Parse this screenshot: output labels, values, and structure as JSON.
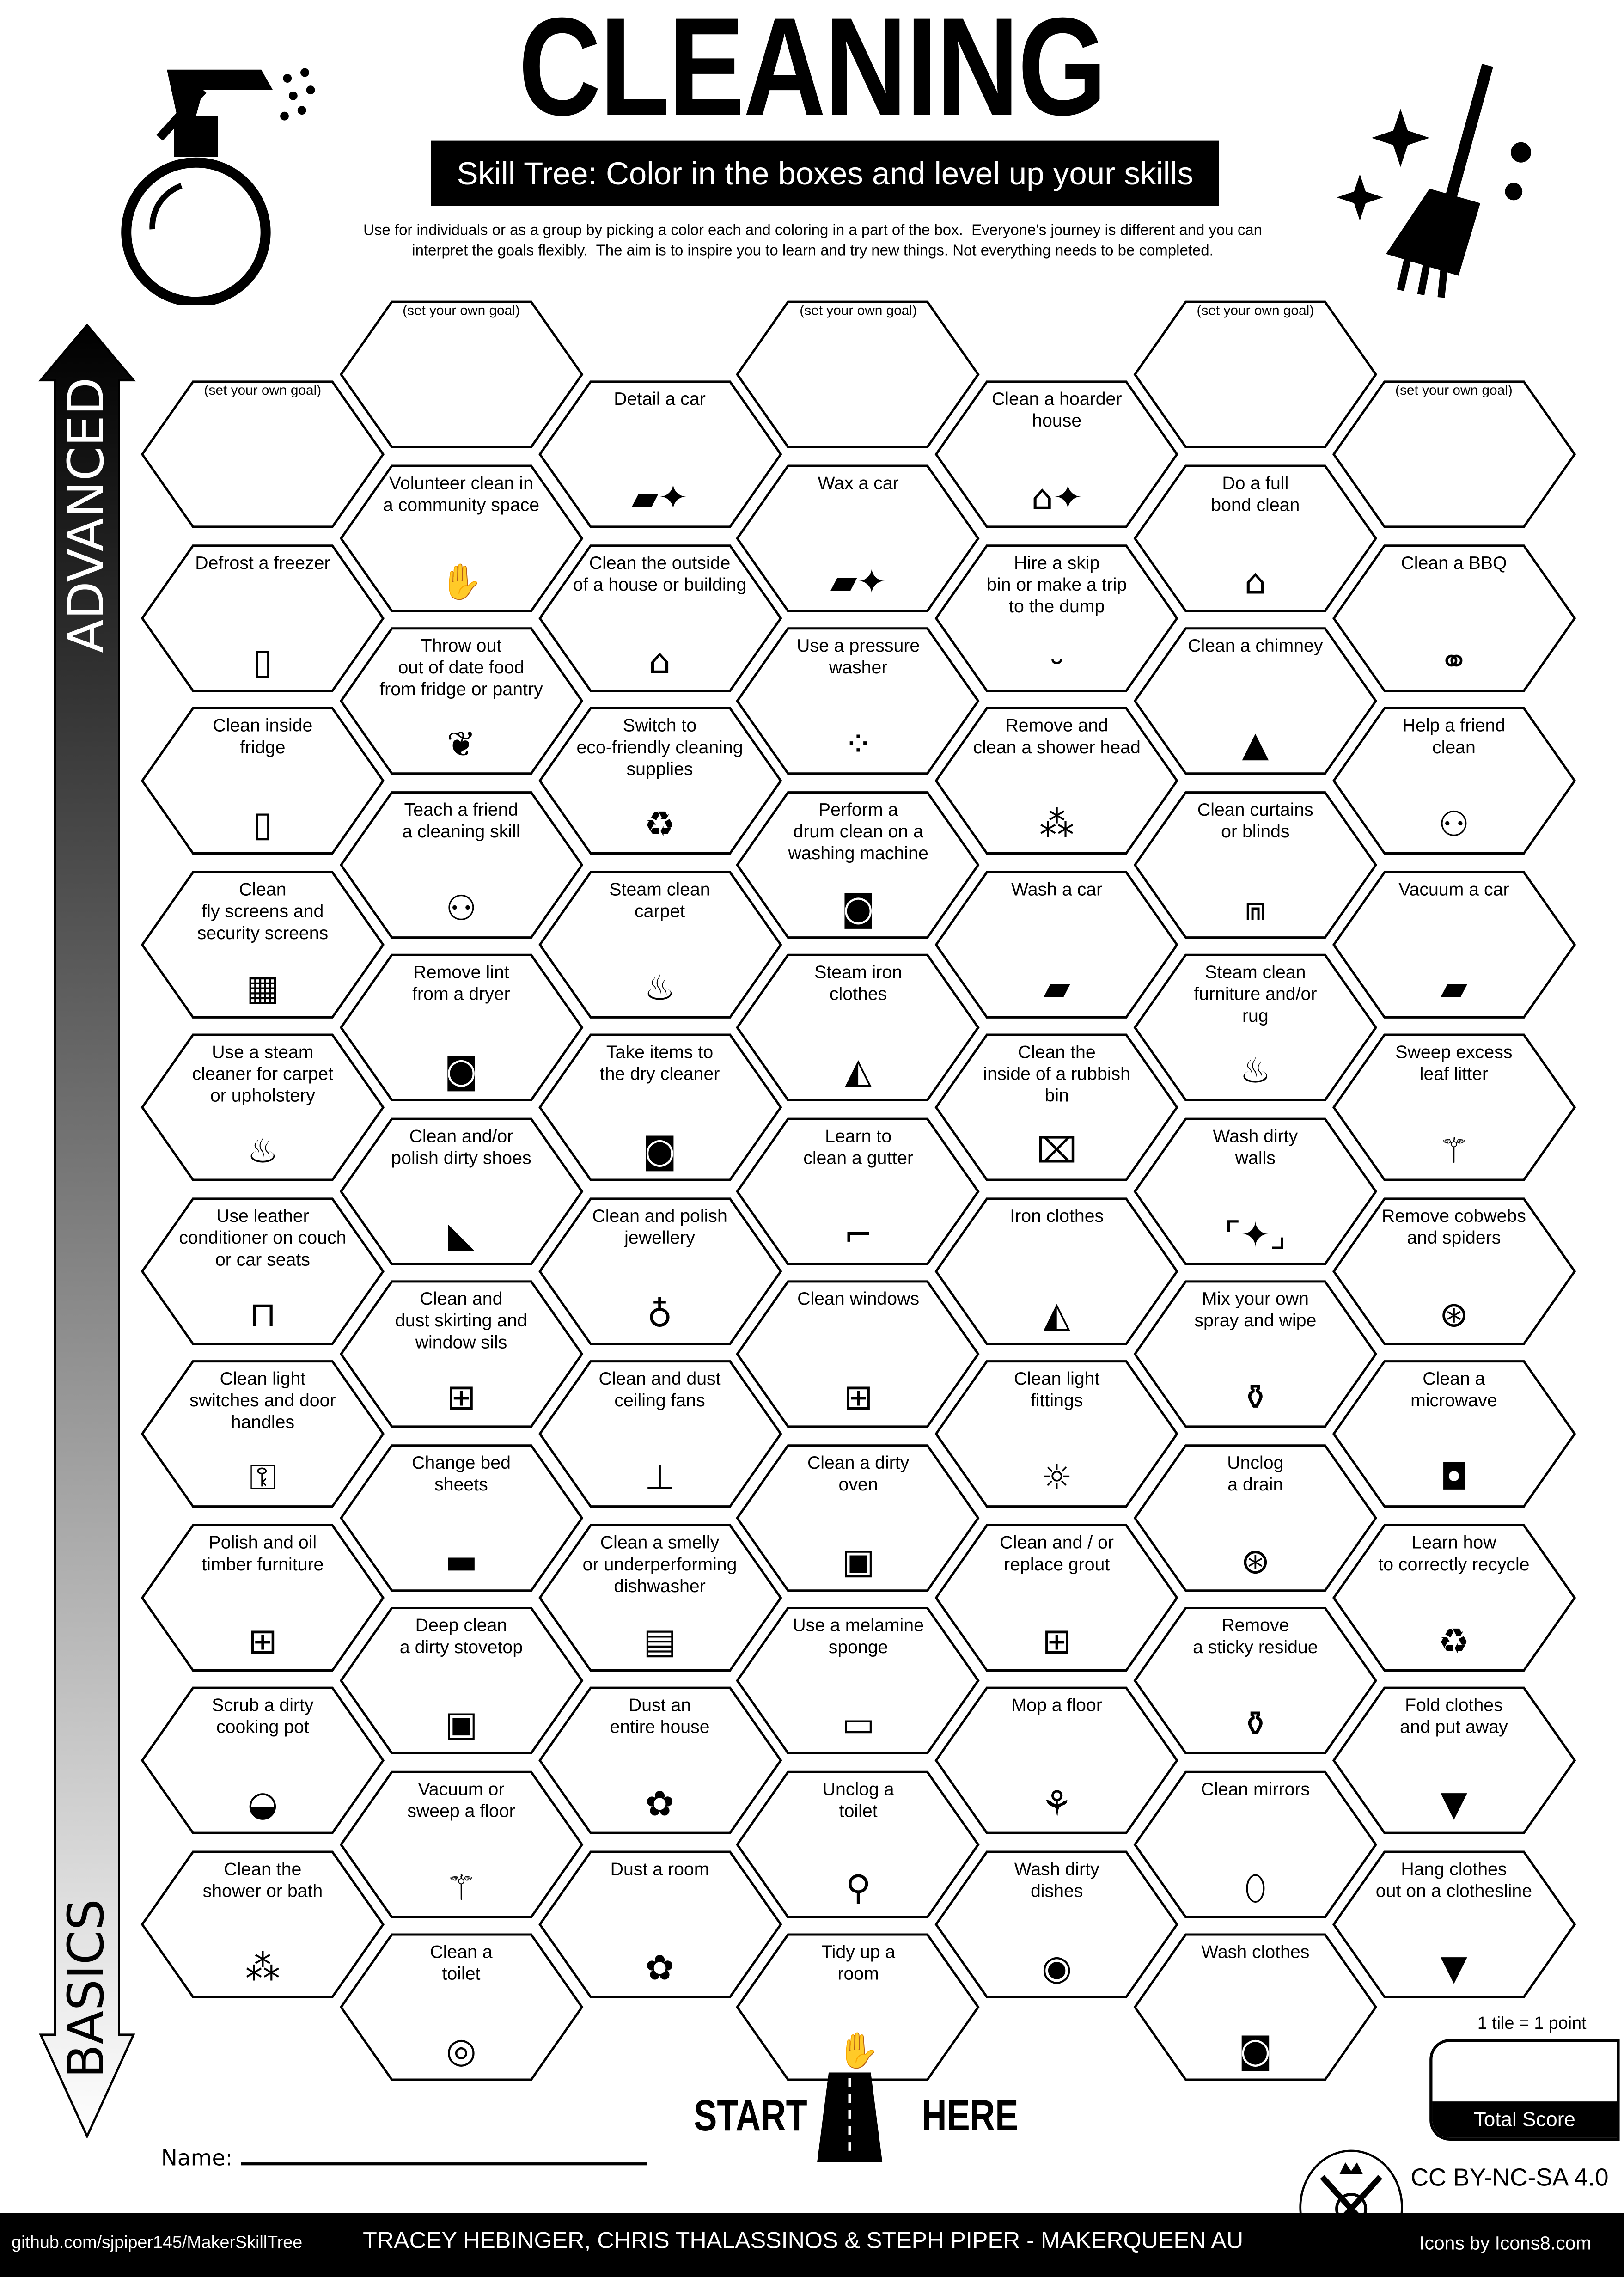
{
  "header": {
    "title": "CLEANING",
    "subtitle": "Skill Tree:  Color in the boxes and level up your skills",
    "intro": "Use for individuals or as a group by picking a color each and coloring in a part of the box.  Everyone's journey is different and you can\ninterpret the goals flexibly.  The aim is to inspire you to learn and try new things. Not everything needs to be completed."
  },
  "side": {
    "advanced": "ADVANCED",
    "basics": "BASICS"
  },
  "colors": {
    "ink": "#000000",
    "paper": "#ffffff"
  },
  "columns": [
    [
      {
        "label": "(set your own goal)",
        "custom": true
      },
      {
        "label": "Defrost a freezer",
        "icon": "fridge-icon"
      },
      {
        "label": "Clean inside\nfridge",
        "icon": "fridge-icon"
      },
      {
        "label": "Clean\nfly screens and\nsecurity screens",
        "icon": "screen-grid-icon"
      },
      {
        "label": "Use a steam\ncleaner for carpet\nor upholstery",
        "icon": "steam-icon"
      },
      {
        "label": "Use leather\nconditioner on couch\nor car seats",
        "icon": "couch-icon"
      },
      {
        "label": "Clean light\nswitches and door\nhandles",
        "icon": "door-handle-icon"
      },
      {
        "label": "Polish and oil\ntimber furniture",
        "icon": "chair-icon"
      },
      {
        "label": "Scrub a dirty\ncooking pot",
        "icon": "pot-icon"
      },
      {
        "label": "Clean the\nshower or bath",
        "icon": "shower-icon"
      }
    ],
    [
      {
        "label": "(set your own goal)",
        "custom": true
      },
      {
        "label": "Volunteer clean in\na community space",
        "icon": "hand-heart-icon"
      },
      {
        "label": "Throw out\nout of date food\nfrom fridge or pantry",
        "icon": "food-icon"
      },
      {
        "label": "Teach a friend\na cleaning skill",
        "icon": "teaching-icon"
      },
      {
        "label": "Remove lint\nfrom a dryer",
        "icon": "dryer-icon"
      },
      {
        "label": "Clean and/or\npolish dirty shoes",
        "icon": "shoe-icon"
      },
      {
        "label": "Clean and\ndust skirting and\nwindow sils",
        "icon": "window-icon"
      },
      {
        "label": "Change bed\nsheets",
        "icon": "bed-icon"
      },
      {
        "label": "Deep clean\na dirty stovetop",
        "icon": "stove-icon"
      },
      {
        "label": "Vacuum or\nsweep a floor",
        "icon": "broom-icon"
      },
      {
        "label": "Clean a\ntoilet",
        "icon": "toilet-icon"
      }
    ],
    [
      {
        "label": "Detail a car",
        "icon": "car-sparkle-icon"
      },
      {
        "label": "Clean the outside\nof a house or building",
        "icon": "house-icon"
      },
      {
        "label": "Switch to\neco-friendly cleaning\nsupplies",
        "icon": "eco-icon"
      },
      {
        "label": "Steam clean\ncarpet",
        "icon": "steam-icon"
      },
      {
        "label": "Take items to\nthe dry cleaner",
        "icon": "washing-machine-icon"
      },
      {
        "label": "Clean and polish\njewellery",
        "icon": "necklace-icon"
      },
      {
        "label": "Clean and dust\nceiling fans",
        "icon": "ceiling-fan-icon"
      },
      {
        "label": "Clean a smelly\nor underperforming\ndishwasher",
        "icon": "dishwasher-icon"
      },
      {
        "label": "Dust an\nentire house",
        "icon": "duster-icon"
      },
      {
        "label": "Dust a room",
        "icon": "duster-icon"
      }
    ],
    [
      {
        "label": "(set your own goal)",
        "custom": true
      },
      {
        "label": "Wax a car",
        "icon": "car-sparkle-icon"
      },
      {
        "label": "Use a pressure\nwasher",
        "icon": "spray-nozzle-icon"
      },
      {
        "label": "Perform a\ndrum clean on a\nwashing machine",
        "icon": "washing-machine-icon"
      },
      {
        "label": "Steam iron\nclothes",
        "icon": "iron-icon"
      },
      {
        "label": "Learn to\nclean a gutter",
        "icon": "gutter-icon"
      },
      {
        "label": "Clean windows",
        "icon": "window-icon"
      },
      {
        "label": "Clean a dirty\noven",
        "icon": "oven-icon"
      },
      {
        "label": "Use a melamine\nsponge",
        "icon": "sponge-icon"
      },
      {
        "label": "Unclog a\ntoilet",
        "icon": "plunger-icon"
      },
      {
        "label": "Tidy up a\nroom",
        "icon": "clean-hands-icon"
      }
    ],
    [
      {
        "label": "Clean a hoarder\nhouse",
        "icon": "house-sparkle-icon"
      },
      {
        "label": "Hire a skip\nbin or make a trip\nto the dump",
        "icon": "skip-bin-icon"
      },
      {
        "label": "Remove and\nclean a shower head",
        "icon": "shower-icon"
      },
      {
        "label": "Wash a car",
        "icon": "car-icon"
      },
      {
        "label": "Clean the\ninside of a rubbish\nbin",
        "icon": "trash-icon"
      },
      {
        "label": "Iron clothes",
        "icon": "iron-icon"
      },
      {
        "label": "Clean light\nfittings",
        "icon": "light-bulb-icon"
      },
      {
        "label": "Clean and / or\nreplace grout",
        "icon": "tiles-icon"
      },
      {
        "label": "Mop a floor",
        "icon": "mop-icon"
      },
      {
        "label": "Wash dirty\ndishes",
        "icon": "dishes-icon"
      }
    ],
    [
      {
        "label": "(set your own goal)",
        "custom": true
      },
      {
        "label": "Do a full\nbond clean",
        "icon": "house-icon"
      },
      {
        "label": "Clean a chimney",
        "icon": "roof-icon"
      },
      {
        "label": "Clean curtains\nor blinds",
        "icon": "curtains-icon"
      },
      {
        "label": "Steam clean\nfurniture and/or\nrug",
        "icon": "steam-icon"
      },
      {
        "label": "Wash dirty\nwalls",
        "icon": "wall-sparkle-icon"
      },
      {
        "label": "Mix your own\nspray and wipe",
        "icon": "spray-bottle-icon"
      },
      {
        "label": "Unclog\na drain",
        "icon": "drain-icon"
      },
      {
        "label": "Remove\na sticky residue",
        "icon": "spray-bottle-icon"
      },
      {
        "label": "Clean mirrors",
        "icon": "mirror-icon"
      },
      {
        "label": "Wash clothes",
        "icon": "washing-machine-icon"
      }
    ],
    [
      {
        "label": "(set your own goal)",
        "custom": true
      },
      {
        "label": "Clean a BBQ",
        "icon": "bbq-icon"
      },
      {
        "label": "Help a friend\nclean",
        "icon": "teaching-icon"
      },
      {
        "label": "Vacuum a car",
        "icon": "car-icon"
      },
      {
        "label": "Sweep excess\nleaf litter",
        "icon": "broom-icon"
      },
      {
        "label": "Remove cobwebs\nand spiders",
        "icon": "cobweb-icon"
      },
      {
        "label": "Clean a\nmicrowave",
        "icon": "microwave-icon"
      },
      {
        "label": "Learn how\nto correctly recycle",
        "icon": "recycle-icon"
      },
      {
        "label": "Fold clothes\nand put away",
        "icon": "tshirt-icon"
      },
      {
        "label": "Hang clothes\nout on a clothesline",
        "icon": "tshirt-icon"
      }
    ]
  ],
  "start": {
    "left": "START",
    "right": "HERE"
  },
  "name_label": "Name:",
  "score": {
    "note": "1 tile = 1 point",
    "label": "Total Score"
  },
  "license": "CC BY-NC-SA 4.0",
  "footer": {
    "repo": "github.com/sjpiper145/MakerSkillTree",
    "authors": "TRACEY HEBINGER, CHRIS THALASSINOS & STEPH PIPER  -  MAKERQUEEN AU",
    "credit": "Icons by Icons8.com"
  }
}
